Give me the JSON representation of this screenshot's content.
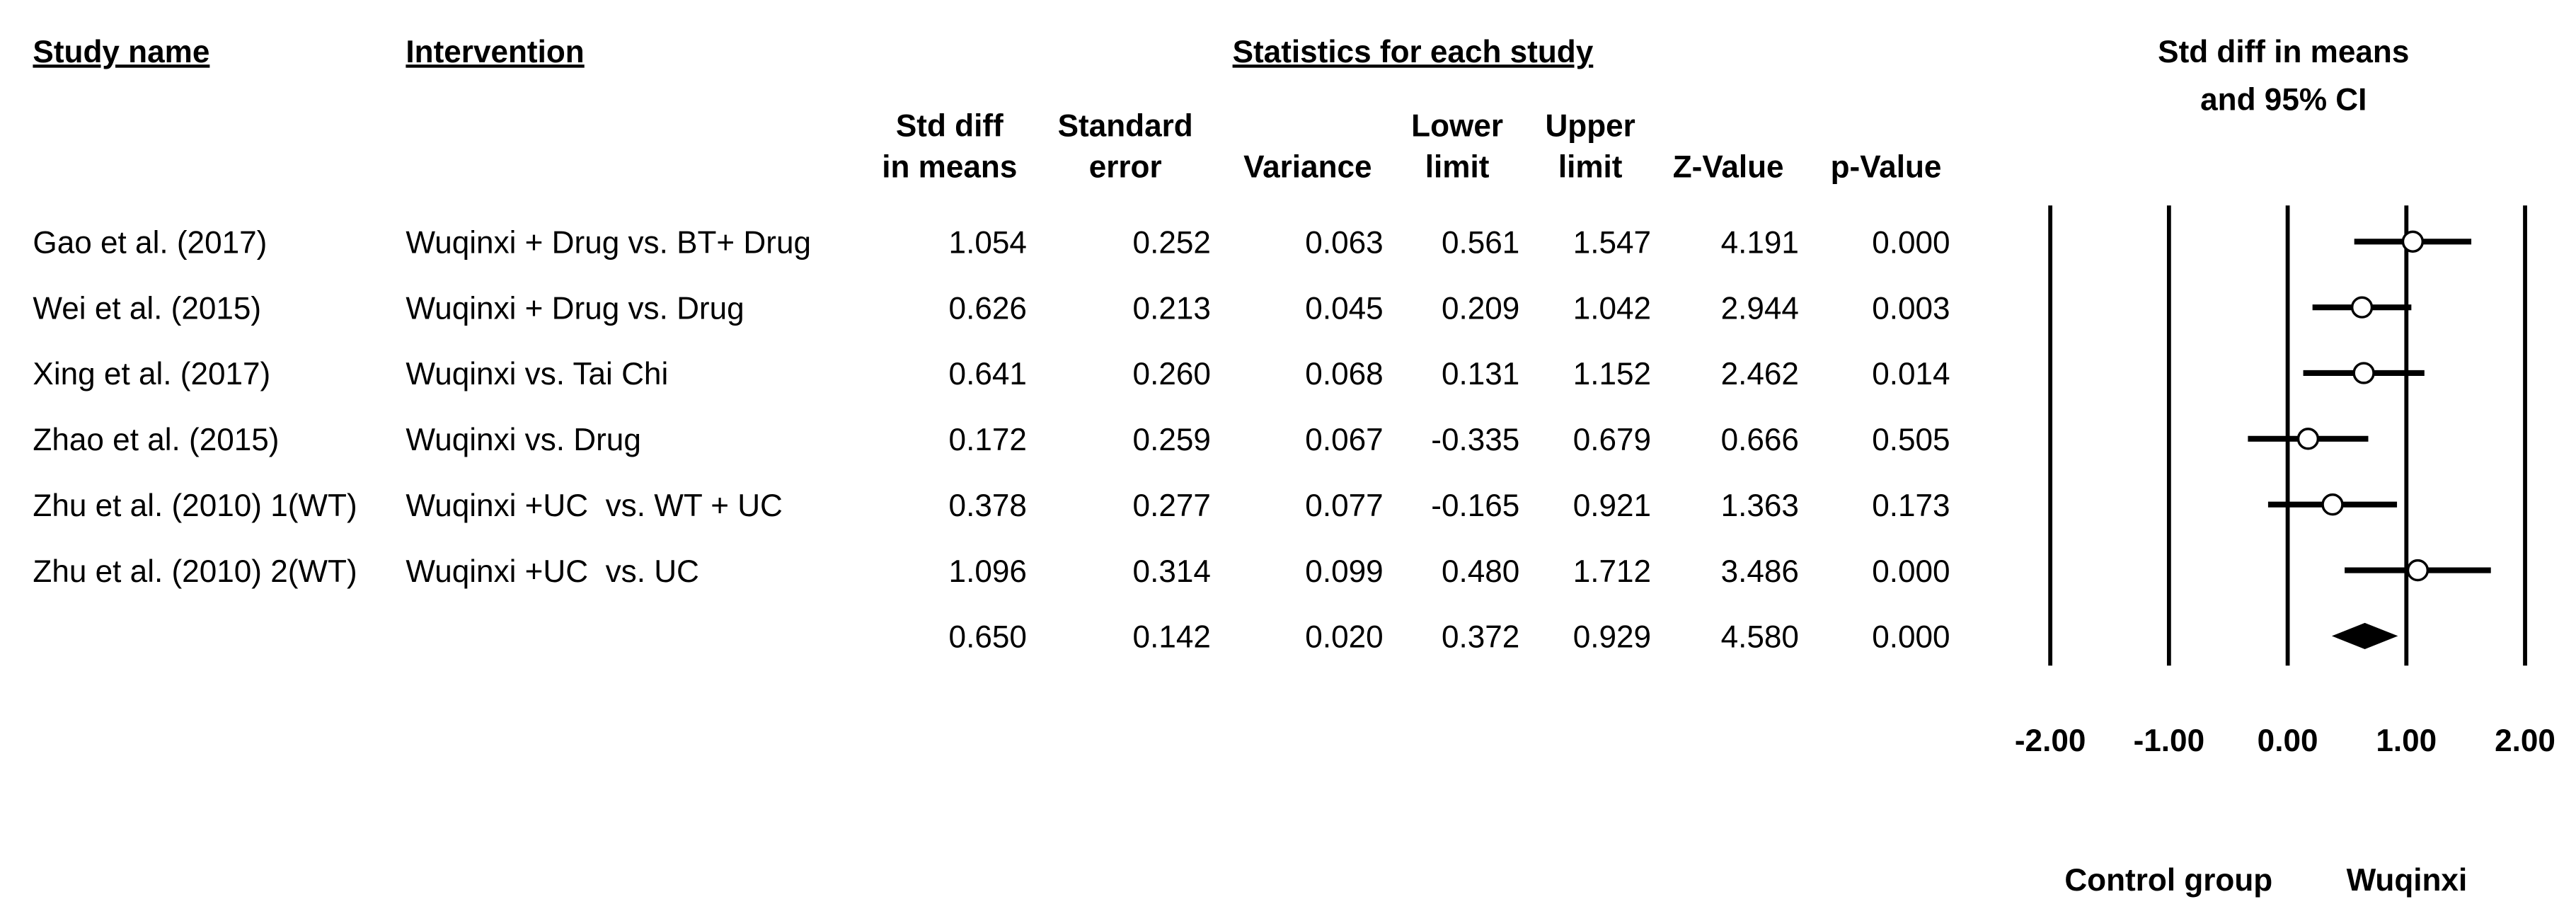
{
  "chart_data": {
    "type": "forest",
    "title": [
      "Std diff in means",
      "and 95% CI"
    ],
    "study_header": "Study name",
    "intervention_header": "Intervention",
    "group_header": "Statistics for each study",
    "categories": [
      "Gao et al. (2017)",
      "Wei et al. (2015)",
      "Xing et al. (2017)",
      "Zhao et al. (2015)",
      "Zhu et al. (2010) 1(WT)",
      "Zhu et al. (2010) 2(WT)",
      null
    ],
    "interventions": [
      "Wuqinxi + Drug vs. BT+ Drug",
      "Wuqinxi + Drug vs. Drug",
      "Wuqinxi vs. Tai Chi",
      "Wuqinxi vs. Drug",
      "Wuqinxi +UC  vs. WT + UC",
      "Wuqinxi +UC  vs. UC",
      null
    ],
    "columns": [
      {
        "header": [
          "Std diff",
          "in means"
        ],
        "values": [
          1.054,
          0.626,
          0.641,
          0.172,
          0.378,
          1.096,
          0.65
        ],
        "value_labels": [
          "1.054",
          "0.626",
          "0.641",
          "0.172",
          "0.378",
          "1.096",
          "0.650"
        ]
      },
      {
        "header": [
          "Standard",
          "error"
        ],
        "values": [
          0.252,
          0.213,
          0.26,
          0.259,
          0.277,
          0.314,
          0.142
        ],
        "value_labels": [
          "0.252",
          "0.213",
          "0.260",
          "0.259",
          "0.277",
          "0.314",
          "0.142"
        ]
      },
      {
        "header": [
          "Variance"
        ],
        "values": [
          0.063,
          0.045,
          0.068,
          0.067,
          0.077,
          0.099,
          0.02
        ],
        "value_labels": [
          "0.063",
          "0.045",
          "0.068",
          "0.067",
          "0.077",
          "0.099",
          "0.020"
        ]
      },
      {
        "header": [
          "Lower",
          "limit"
        ],
        "values": [
          0.561,
          0.209,
          0.131,
          -0.335,
          -0.165,
          0.48,
          0.372
        ],
        "value_labels": [
          "0.561",
          "0.209",
          "0.131",
          "-0.335",
          "-0.165",
          "0.480",
          "0.372"
        ]
      },
      {
        "header": [
          "Upper",
          "limit"
        ],
        "values": [
          1.547,
          1.042,
          1.152,
          0.679,
          0.921,
          1.712,
          0.929
        ],
        "value_labels": [
          "1.547",
          "1.042",
          "1.152",
          "0.679",
          "0.921",
          "1.712",
          "0.929"
        ]
      },
      {
        "header": [
          "Z-Value"
        ],
        "values": [
          4.191,
          2.944,
          2.462,
          0.666,
          1.363,
          3.486,
          4.58
        ],
        "value_labels": [
          "4.191",
          "2.944",
          "2.462",
          "0.666",
          "1.363",
          "3.486",
          "4.580"
        ]
      },
      {
        "header": [
          "p-Value"
        ],
        "values": [
          0,
          0.003,
          0.014,
          0.505,
          0.173,
          0,
          0
        ],
        "value_labels": [
          "0.000",
          "0.003",
          "0.014",
          "0.505",
          "0.173",
          "0.000",
          "0.000"
        ]
      }
    ],
    "xlim": [
      -2,
      2
    ],
    "xticks": [
      {
        "value": -2,
        "label": "-2.00"
      },
      {
        "value": -1,
        "label": "-1.00"
      },
      {
        "value": 0,
        "label": "0.00"
      },
      {
        "value": 1,
        "label": "1.00"
      },
      {
        "value": 2,
        "label": "2.00"
      }
    ],
    "grid": true,
    "xlabel_left": "Control group",
    "xlabel_right": "Wuqinxi"
  }
}
